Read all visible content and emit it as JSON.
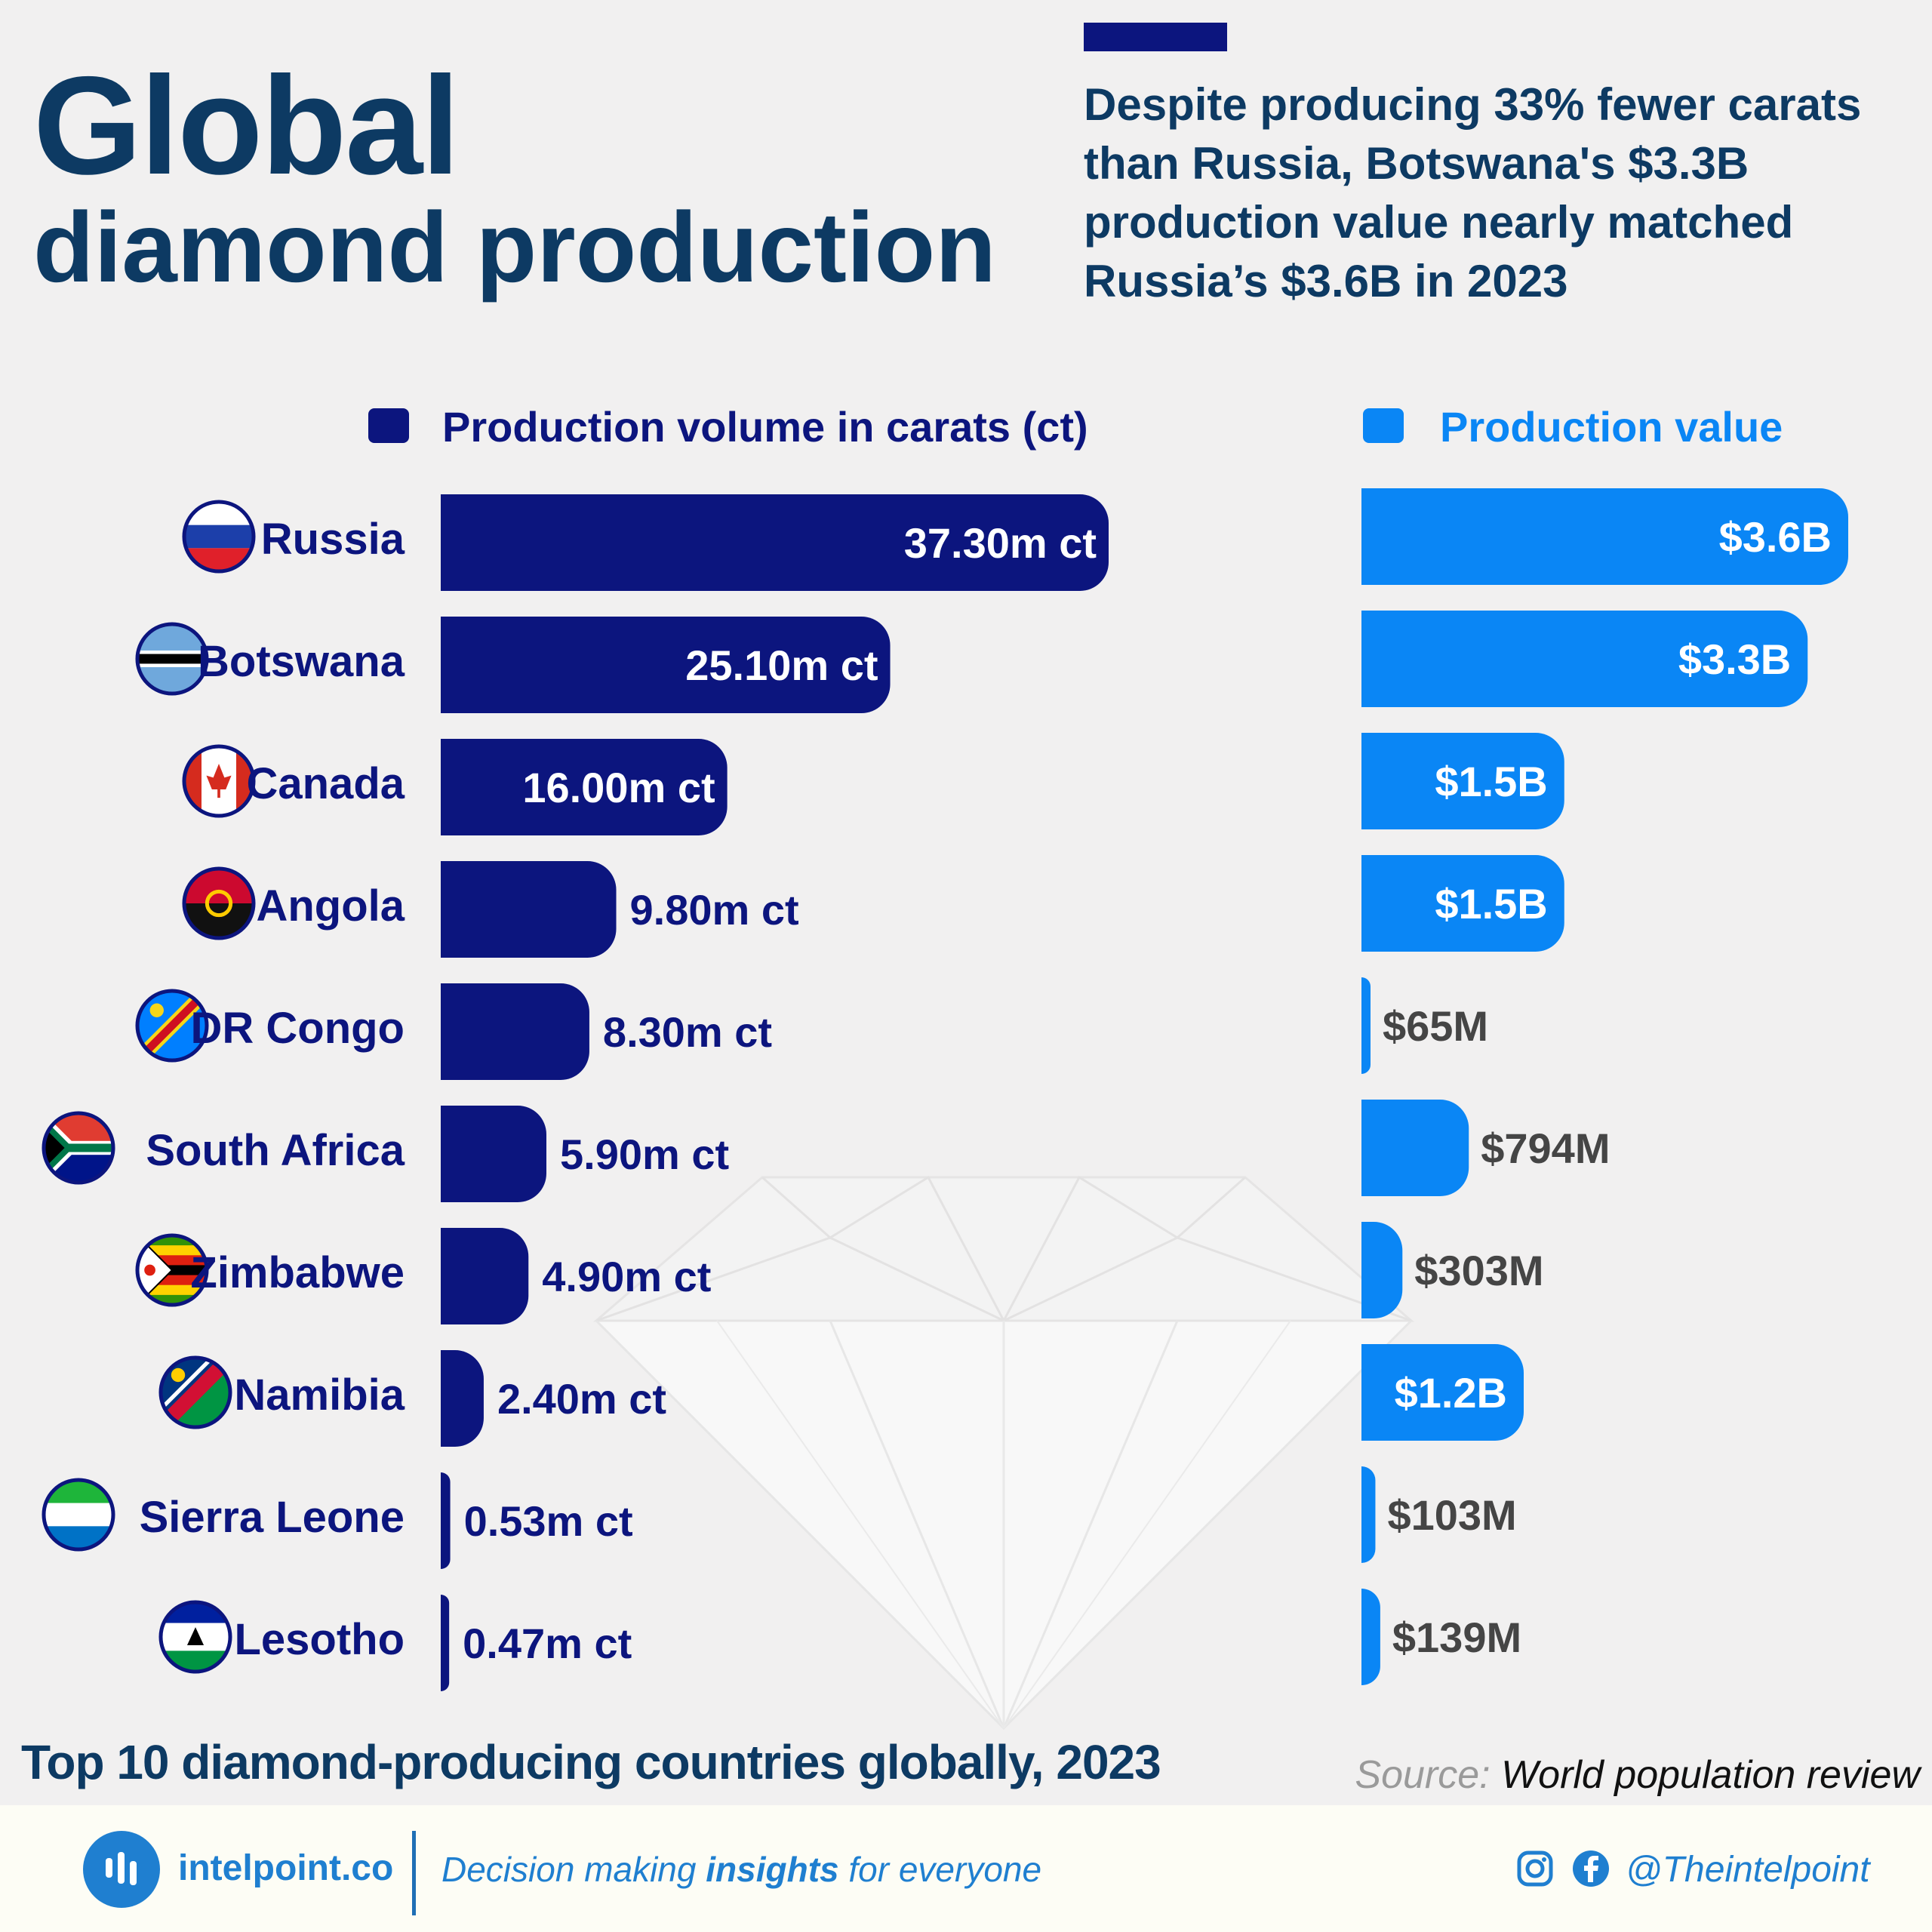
{
  "title": {
    "line1": "Global",
    "line2": "diamond production"
  },
  "headline": "Despite producing 33% fewer carats than Russia, Botswana's $3.3B production value nearly matched Russia’s $3.6B in 2023",
  "legend": {
    "volume_label": "Production volume in carats (ct)",
    "value_label": "Production value"
  },
  "colors": {
    "volume": "#0c157e",
    "value": "#0a86f5",
    "heading": "#0d3a63",
    "label_dark": "#454545"
  },
  "chart_data": [
    {
      "type": "bar",
      "orientation": "horizontal",
      "title": "Production volume in carats (ct)",
      "categories": [
        "Russia",
        "Botswana",
        "Canada",
        "Angola",
        "DR Congo",
        "South Africa",
        "Zimbabwe",
        "Namibia",
        "Sierra Leone",
        "Lesotho"
      ],
      "values": [
        37.3,
        25.1,
        16.0,
        9.8,
        8.3,
        5.9,
        4.9,
        2.4,
        0.53,
        0.47
      ],
      "value_labels": [
        "37.30m ct",
        "25.10m ct",
        "16.00m ct",
        "9.80m ct",
        "8.30m ct",
        "5.90m ct",
        "4.90m ct",
        "2.40m ct",
        "0.53m ct",
        "0.47m ct"
      ],
      "color": "#0c157e"
    },
    {
      "type": "bar",
      "orientation": "horizontal",
      "title": "Production value",
      "categories": [
        "Russia",
        "Botswana",
        "Canada",
        "Angola",
        "DR Congo",
        "South Africa",
        "Zimbabwe",
        "Namibia",
        "Sierra Leone",
        "Lesotho"
      ],
      "values": [
        3.6,
        3.3,
        1.5,
        1.5,
        0.065,
        0.794,
        0.303,
        1.2,
        0.103,
        0.139
      ],
      "value_labels": [
        "$3.6B",
        "$3.3B",
        "$1.5B",
        "$1.5B",
        "$65M",
        "$794M",
        "$303M",
        "$1.2B",
        "$103M",
        "$139M"
      ],
      "color": "#0a86f5"
    }
  ],
  "flags": [
    "russia-flag-icon",
    "botswana-flag-icon",
    "canada-flag-icon",
    "angola-flag-icon",
    "dr-congo-flag-icon",
    "south-africa-flag-icon",
    "zimbabwe-flag-icon",
    "namibia-flag-icon",
    "sierra-leone-flag-icon",
    "lesotho-flag-icon"
  ],
  "footer_title": "Top 10 diamond-producing countries globally, 2023",
  "source": {
    "label": "Source:",
    "text": "World population review"
  },
  "footer": {
    "brand": "intelpoint.co",
    "tagline_pre": "Decision making ",
    "tagline_bold": "insights",
    "tagline_post": " for everyone",
    "handle": "@Theintelpoint"
  }
}
